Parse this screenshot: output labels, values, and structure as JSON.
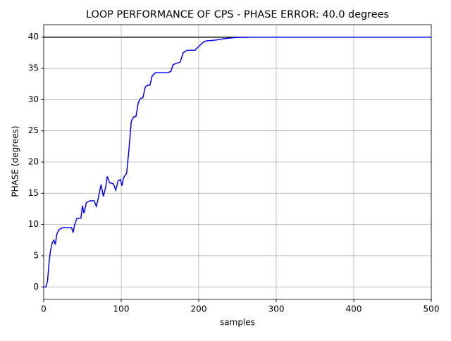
{
  "chart_data": {
    "type": "line",
    "title": "LOOP PERFORMANCE OF CPS - PHASE ERROR: 40.0 degrees",
    "x_label": "samples",
    "y_label": "PHASE (degrees)",
    "x": [
      0,
      3,
      5,
      7,
      9,
      11,
      13,
      15,
      17,
      20,
      25,
      30,
      36,
      38,
      40,
      43,
      48,
      50,
      52,
      55,
      60,
      65,
      68,
      70,
      74,
      77,
      80,
      82,
      85,
      90,
      93,
      96,
      99,
      101,
      103,
      107,
      110,
      113,
      116,
      119,
      122,
      125,
      128,
      131,
      134,
      137,
      140,
      144,
      150,
      160,
      164,
      167,
      171,
      176,
      180,
      185,
      195,
      200,
      206,
      210,
      220,
      230,
      240,
      250,
      270,
      300,
      500
    ],
    "series": [
      {
        "color": "#0000ff",
        "values": [
          0,
          0,
          1,
          4,
          6,
          7,
          7.5,
          6.8,
          8.5,
          9.2,
          9.5,
          9.5,
          9.5,
          8.7,
          10,
          11,
          11,
          13,
          11.8,
          13.5,
          13.8,
          13.8,
          12.9,
          14,
          16.4,
          14.5,
          16,
          17.7,
          16.7,
          16.5,
          15.5,
          17,
          17.2,
          16.2,
          17.5,
          18.2,
          22,
          26.5,
          27.2,
          27.3,
          29.5,
          30.2,
          30.3,
          32,
          32.3,
          32.3,
          33.8,
          34.3,
          34.3,
          34.3,
          34.5,
          35.6,
          35.8,
          36,
          37.5,
          37.9,
          37.9,
          38.5,
          39.2,
          39.4,
          39.5,
          39.7,
          39.85,
          39.95,
          40,
          40,
          40
        ]
      }
    ],
    "reference_line": {
      "value": 40,
      "color": "#000000"
    },
    "xlim": [
      0,
      500
    ],
    "ylim": [
      -2,
      42
    ],
    "xticks": [
      0,
      100,
      200,
      300,
      400,
      500
    ],
    "yticks": [
      0,
      5,
      10,
      15,
      20,
      25,
      30,
      35,
      40
    ],
    "grid": true
  }
}
